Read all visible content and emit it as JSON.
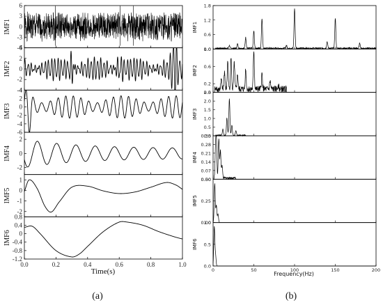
{
  "chart_data": [
    {
      "type": "line",
      "caption": "(a)",
      "xlabel": "Time(s)",
      "xlim": [
        0,
        1.0
      ],
      "xticks": [
        "0.0",
        "0.2",
        "0.4",
        "0.6",
        "0.8",
        "1.0"
      ],
      "panels": [
        {
          "ylabel": "IMF1",
          "ylim": [
            -6,
            6
          ],
          "yticks": [
            "6",
            "3",
            "0",
            "-3",
            "-6"
          ],
          "signal": {
            "kind": "high",
            "amp": 3.5,
            "seed": 1,
            "spikes": [
              [
                0.196,
                6
              ],
              [
                0.605,
                6
              ],
              [
                0.689,
                6
              ]
            ]
          }
        },
        {
          "ylabel": "IMF2",
          "ylim": [
            -4,
            4
          ],
          "yticks": [
            "4",
            "2",
            "0",
            "-2",
            "-4"
          ],
          "signal": {
            "kind": "sum",
            "components": [
              [
                48,
                1.6,
                0.0
              ],
              [
                52,
                1.1,
                1.3
              ],
              [
                75,
                0.6,
                0.4
              ]
            ],
            "bursts": [
              [
                0.3,
                3.2
              ],
              [
                0.6,
                3.0
              ],
              [
                0.95,
                3.2
              ]
            ]
          }
        },
        {
          "ylabel": "IMF3",
          "ylim": [
            -6,
            4
          ],
          "yticks": [
            "4",
            "2",
            "0",
            "-2",
            "-4",
            "-6"
          ],
          "signal": {
            "kind": "sum",
            "components": [
              [
                20,
                2.6,
                0.2
              ],
              [
                23,
                1.2,
                1.1
              ]
            ],
            "bursts": [
              [
                0.03,
                3.0
              ]
            ]
          }
        },
        {
          "ylabel": "IMF4",
          "ylim": [
            -3,
            3
          ],
          "yticks": [
            "2",
            "0",
            "-2"
          ],
          "signal": {
            "kind": "decay",
            "freq": 8.2,
            "amp0": 2.0,
            "tau": 0.35,
            "floor": 0.7,
            "phase": 3.6
          }
        },
        {
          "ylabel": "IMF5",
          "ylim": [
            -2.5,
            1.5
          ],
          "yticks": [
            "1",
            "0",
            "-1",
            "-2"
          ],
          "signal": {
            "kind": "points",
            "t": [
              0.0,
              0.03,
              0.08,
              0.13,
              0.17,
              0.22,
              0.3,
              0.4,
              0.5,
              0.6,
              0.7,
              0.8,
              0.9,
              0.96,
              1.0
            ],
            "v": [
              -0.1,
              1.0,
              0.2,
              -1.5,
              -2.05,
              -1.1,
              0.3,
              0.4,
              -0.05,
              -0.3,
              -0.15,
              0.3,
              0.75,
              0.5,
              0.1
            ]
          }
        },
        {
          "ylabel": "IMF6",
          "ylim": [
            -1.2,
            0.8
          ],
          "yticks": [
            "0.8",
            "0.4",
            "0",
            "-0.4",
            "-0.8",
            "-1.2"
          ],
          "signal": {
            "kind": "points",
            "t": [
              0.0,
              0.05,
              0.1,
              0.2,
              0.3,
              0.35,
              0.4,
              0.5,
              0.6,
              0.65,
              0.75,
              0.85,
              0.95,
              1.0
            ],
            "v": [
              0.3,
              0.35,
              0.0,
              -0.8,
              -1.1,
              -0.95,
              -0.6,
              0.1,
              0.55,
              0.55,
              0.4,
              0.1,
              -0.15,
              -0.25
            ]
          }
        }
      ]
    },
    {
      "type": "line",
      "caption": "(b)",
      "xlabel": "Frequency(Hz)",
      "xlim": [
        0,
        200
      ],
      "xticks": [
        "0",
        "50",
        "100",
        "150",
        "200"
      ],
      "panels": [
        {
          "ylabel": "IMF1",
          "ylim": [
            0,
            1.8
          ],
          "yticks": [
            "1.8",
            "1.2",
            "0.6",
            "0.0"
          ],
          "peaks": [
            [
              100,
              1.65
            ],
            [
              150,
              1.25
            ],
            [
              60,
              1.25
            ],
            [
              50,
              0.72
            ],
            [
              40,
              0.45
            ],
            [
              140,
              0.28
            ],
            [
              180,
              0.22
            ],
            [
              90,
              0.12
            ],
            [
              30,
              0.18
            ],
            [
              20,
              0.12
            ]
          ],
          "noise": 0.06,
          "noise_range": [
            3,
            200
          ]
        },
        {
          "ylabel": "IMF2",
          "ylim": [
            0,
            1.0
          ],
          "yticks": [
            "1.0",
            "0.6",
            "0.2",
            "0.0"
          ],
          "peaks": [
            [
              50,
              0.9
            ],
            [
              40,
              0.45
            ],
            [
              60,
              0.35
            ],
            [
              22,
              0.7
            ],
            [
              18,
              0.65
            ],
            [
              26,
              0.6
            ],
            [
              14,
              0.4
            ],
            [
              30,
              0.35
            ],
            [
              70,
              0.18
            ],
            [
              80,
              0.1
            ],
            [
              10,
              0.2
            ]
          ],
          "noise": 0.15,
          "noise_range": [
            2,
            90
          ]
        },
        {
          "ylabel": "IMF3",
          "ylim": [
            0,
            2.5
          ],
          "yticks": [
            "2.5",
            "2.0",
            "1.5",
            "1.0",
            "0.5",
            "0.0"
          ],
          "peaks": [
            [
              20,
              2.1
            ],
            [
              17,
              1.0
            ],
            [
              23,
              0.6
            ],
            [
              12,
              0.35
            ],
            [
              28,
              0.25
            ]
          ],
          "noise": 0.06,
          "noise_range": [
            3,
            40
          ]
        },
        {
          "ylabel": "IMF4",
          "ylim": [
            0,
            0.35
          ],
          "yticks": [
            "0.35",
            "0.28",
            "0.21",
            "0.14",
            "0.07",
            "0.00"
          ],
          "peaks": [
            [
              4,
              0.3
            ],
            [
              7,
              0.32
            ],
            [
              9,
              0.22
            ],
            [
              3,
              0.2
            ],
            [
              11,
              0.1
            ]
          ],
          "noise": 0.02,
          "noise_range": [
            1,
            28
          ]
        },
        {
          "ylabel": "IMF5",
          "ylim": [
            0,
            0.5
          ],
          "yticks": [
            "0.50",
            "0.25",
            "0.00"
          ],
          "peaks": [
            [
              2,
              0.45
            ],
            [
              4,
              0.2
            ],
            [
              6,
              0.1
            ]
          ],
          "noise": 0.0,
          "noise_range": [
            0,
            0
          ]
        },
        {
          "ylabel": "IMF6",
          "ylim": [
            0,
            1.0
          ],
          "yticks": [
            "1.0",
            "0.5",
            "0.0"
          ],
          "peaks": [
            [
              1.5,
              0.9
            ],
            [
              3,
              0.25
            ]
          ],
          "noise": 0.0,
          "noise_range": [
            0,
            0
          ]
        }
      ]
    }
  ]
}
